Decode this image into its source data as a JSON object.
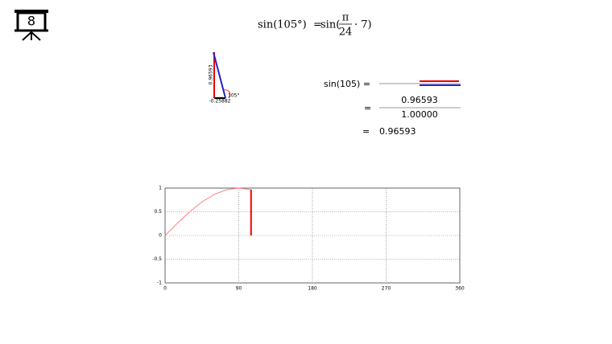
{
  "slide_number": "8",
  "formula": {
    "lhs": "sin(105°)",
    "equals": "=",
    "rhs_prefix": "sin(",
    "numerator": "π",
    "denominator": "24",
    "rhs_suffix": "· 7)"
  },
  "triangle": {
    "vertical_label": "0.96593",
    "horizontal_label": "-0.25882",
    "angle_label": "105°"
  },
  "computation": {
    "lhs": "sin(105) =",
    "equals": "=",
    "numerator": "0.96593",
    "denominator": "1.00000",
    "result_equals": "=",
    "result": "0.96593"
  },
  "chart_data": {
    "type": "line",
    "x": [
      0,
      15,
      30,
      45,
      60,
      75,
      90,
      105
    ],
    "series": [
      {
        "color": "#ff8080",
        "values": [
          0,
          0.259,
          0.5,
          0.707,
          0.866,
          0.966,
          1,
          0.966
        ]
      }
    ],
    "highlight": {
      "x": 105,
      "value": 0.966,
      "color": "#ee0000"
    },
    "xlim": [
      0,
      360
    ],
    "xticks": [
      0,
      90,
      180,
      270,
      360
    ],
    "ylim": [
      -1,
      1
    ],
    "yticks": [
      -1,
      -0.5,
      0,
      0.5,
      1
    ],
    "grid": true
  }
}
